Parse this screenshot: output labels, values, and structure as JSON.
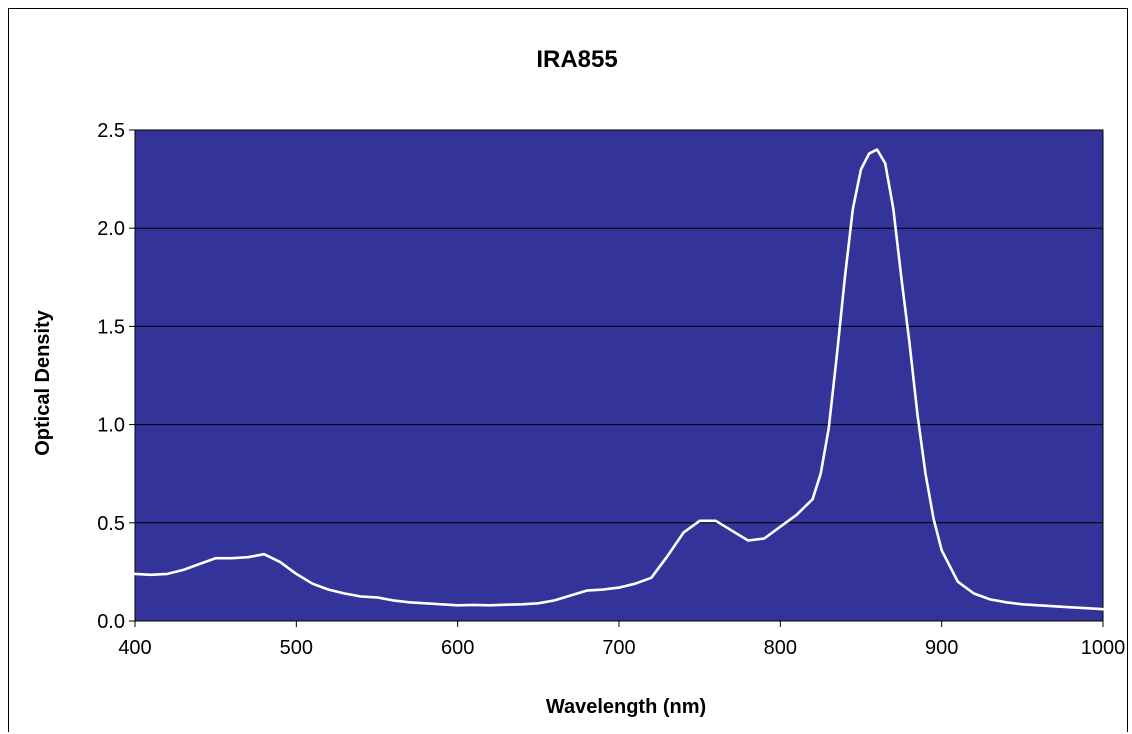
{
  "chart_data": {
    "type": "line",
    "title": "IRA855",
    "xlabel": "Wavelength (nm)",
    "ylabel": "Optical Density",
    "xlim": [
      400,
      1000
    ],
    "ylim": [
      0,
      2.5
    ],
    "x_ticks": [
      "400",
      "500",
      "600",
      "700",
      "800",
      "900",
      "1000"
    ],
    "y_ticks": [
      "0.0",
      "0.5",
      "1.0",
      "1.5",
      "2.0",
      "2.5"
    ],
    "x_tick_values": [
      400,
      500,
      600,
      700,
      800,
      900,
      1000
    ],
    "y_tick_values": [
      0,
      0.5,
      1.0,
      1.5,
      2.0,
      2.5
    ],
    "grid": "horizontal",
    "legend": "none",
    "colors": {
      "plot_background": "#333399",
      "line": "#ffffff",
      "grid": "#000000"
    },
    "series": [
      {
        "x": [
          400,
          410,
          420,
          430,
          440,
          450,
          460,
          470,
          480,
          490,
          500,
          510,
          520,
          530,
          540,
          550,
          560,
          570,
          580,
          590,
          600,
          610,
          620,
          630,
          640,
          650,
          660,
          670,
          680,
          690,
          700,
          710,
          720,
          730,
          740,
          750,
          760,
          770,
          780,
          790,
          800,
          810,
          820,
          825,
          830,
          835,
          840,
          845,
          850,
          855,
          860,
          865,
          870,
          875,
          880,
          885,
          890,
          895,
          900,
          910,
          920,
          930,
          940,
          950,
          960,
          970,
          980,
          990,
          1000
        ],
        "y": [
          0.24,
          0.235,
          0.24,
          0.26,
          0.29,
          0.32,
          0.32,
          0.325,
          0.34,
          0.3,
          0.24,
          0.19,
          0.16,
          0.14,
          0.125,
          0.12,
          0.105,
          0.095,
          0.09,
          0.085,
          0.08,
          0.082,
          0.08,
          0.083,
          0.085,
          0.09,
          0.105,
          0.13,
          0.155,
          0.16,
          0.17,
          0.19,
          0.22,
          0.33,
          0.45,
          0.51,
          0.51,
          0.46,
          0.41,
          0.42,
          0.48,
          0.54,
          0.62,
          0.75,
          0.98,
          1.35,
          1.75,
          2.1,
          2.3,
          2.38,
          2.4,
          2.33,
          2.1,
          1.75,
          1.42,
          1.05,
          0.75,
          0.52,
          0.36,
          0.2,
          0.14,
          0.11,
          0.095,
          0.085,
          0.08,
          0.075,
          0.07,
          0.065,
          0.06
        ]
      }
    ]
  }
}
